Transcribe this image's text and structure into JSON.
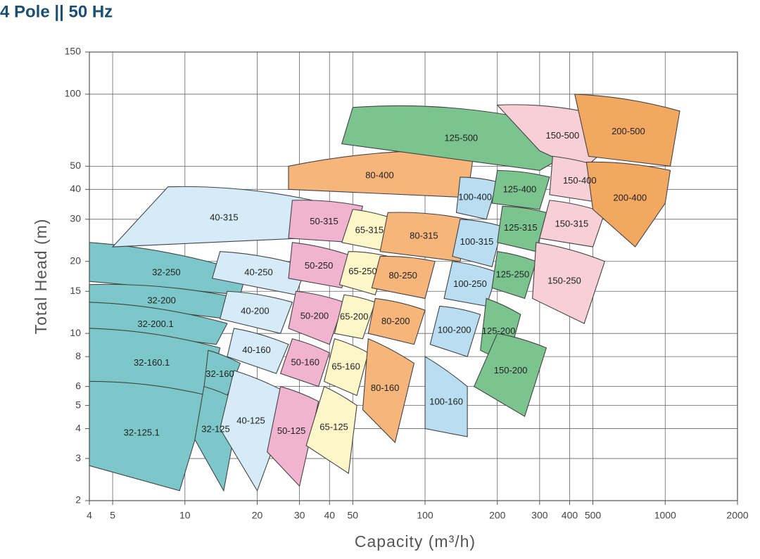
{
  "chart_data": {
    "type": "region",
    "title": "4 Pole || 50 Hz",
    "x_label": "Capacity (m³/h)",
    "y_label": "Total Head (m)",
    "log_x": true,
    "log_y": true,
    "grid": true,
    "xlim": [
      4,
      2000
    ],
    "ylim": [
      2,
      150
    ],
    "xticks": [
      4,
      5,
      10,
      20,
      30,
      40,
      50,
      100,
      200,
      300,
      400,
      500,
      1000,
      2000
    ],
    "yticks": [
      2,
      3,
      4,
      5,
      6,
      8,
      10,
      15,
      20,
      30,
      40,
      50,
      100,
      150
    ],
    "regions": [
      {
        "name": "32-250",
        "color": "#7cc7c9",
        "points": [
          [
            4,
            24
          ],
          [
            18,
            18
          ],
          [
            17,
            14.5
          ],
          [
            4,
            16.5
          ]
        ]
      },
      {
        "name": "32-200",
        "color": "#7cc7c9",
        "points": [
          [
            4,
            16
          ],
          [
            17,
            14
          ],
          [
            15,
            11.5
          ],
          [
            4,
            13.5
          ]
        ]
      },
      {
        "name": "32-200.1",
        "color": "#7cc7c9",
        "points": [
          [
            4,
            13.5
          ],
          [
            15,
            11
          ],
          [
            13.5,
            9
          ],
          [
            4,
            10.5
          ]
        ]
      },
      {
        "name": "32-160.1",
        "color": "#7cc7c9",
        "points": [
          [
            4,
            10.5
          ],
          [
            14,
            8.7
          ],
          [
            12.5,
            5.5
          ],
          [
            4,
            6.3
          ]
        ]
      },
      {
        "name": "32-125.1",
        "color": "#7cc7c9",
        "points": [
          [
            4,
            6.3
          ],
          [
            12.5,
            5.5
          ],
          [
            9.5,
            2.2
          ],
          [
            4,
            2.8
          ]
        ]
      },
      {
        "name": "32-160",
        "color": "#7cc7c9",
        "points": [
          [
            12.5,
            8.5
          ],
          [
            17,
            7.5
          ],
          [
            15,
            5.5
          ],
          [
            12,
            5.9
          ]
        ]
      },
      {
        "name": "32-125",
        "color": "#7cc7c9",
        "points": [
          [
            12,
            6
          ],
          [
            17,
            5.2
          ],
          [
            14.5,
            2.2
          ],
          [
            11,
            3.6
          ]
        ]
      },
      {
        "name": "40-315",
        "color": "#d5ebf7",
        "points": [
          [
            8.5,
            41
          ],
          [
            34,
            36
          ],
          [
            31,
            25
          ],
          [
            5,
            23
          ]
        ]
      },
      {
        "name": "40-250",
        "color": "#d5ebf7",
        "points": [
          [
            14,
            22
          ],
          [
            32,
            19
          ],
          [
            29,
            14.5
          ],
          [
            13,
            17
          ]
        ]
      },
      {
        "name": "40-200",
        "color": "#d5ebf7",
        "points": [
          [
            15,
            15
          ],
          [
            28,
            13.5
          ],
          [
            25,
            10
          ],
          [
            14,
            11.5
          ]
        ]
      },
      {
        "name": "40-160",
        "color": "#d5ebf7",
        "points": [
          [
            16,
            10.5
          ],
          [
            27,
            9
          ],
          [
            24,
            6.8
          ],
          [
            15,
            8
          ]
        ]
      },
      {
        "name": "40-125",
        "color": "#d5ebf7",
        "points": [
          [
            16,
            7
          ],
          [
            28,
            5.5
          ],
          [
            20,
            2.2
          ],
          [
            14,
            4
          ]
        ]
      },
      {
        "name": "50-315",
        "color": "#f0b3d0",
        "points": [
          [
            28,
            36
          ],
          [
            55,
            34
          ],
          [
            50,
            24
          ],
          [
            27,
            25
          ]
        ]
      },
      {
        "name": "50-250",
        "color": "#f0b3d0",
        "points": [
          [
            28,
            24
          ],
          [
            50,
            21
          ],
          [
            45,
            15.5
          ],
          [
            27,
            17
          ]
        ]
      },
      {
        "name": "50-200",
        "color": "#f0b3d0",
        "points": [
          [
            29,
            15
          ],
          [
            46,
            13.5
          ],
          [
            40,
            9
          ],
          [
            27,
            10.5
          ]
        ]
      },
      {
        "name": "50-160",
        "color": "#f0b3d0",
        "points": [
          [
            28,
            9.5
          ],
          [
            40,
            8.3
          ],
          [
            36,
            6
          ],
          [
            25,
            6.8
          ]
        ]
      },
      {
        "name": "50-125",
        "color": "#f0b3d0",
        "points": [
          [
            25,
            6
          ],
          [
            36,
            5.2
          ],
          [
            30,
            2.3
          ],
          [
            22,
            3.2
          ]
        ]
      },
      {
        "name": "80-400",
        "color": "#f5b57b",
        "points": [
          [
            27,
            50
          ],
          [
            160,
            58
          ],
          [
            150,
            37
          ],
          [
            27,
            40
          ]
        ]
      },
      {
        "name": "65-315",
        "color": "#fdf6c9",
        "points": [
          [
            50,
            33
          ],
          [
            75,
            30
          ],
          [
            70,
            22
          ],
          [
            45,
            24
          ]
        ]
      },
      {
        "name": "65-250",
        "color": "#fdf6c9",
        "points": [
          [
            48,
            22
          ],
          [
            70,
            21
          ],
          [
            62,
            14.5
          ],
          [
            44,
            16
          ]
        ]
      },
      {
        "name": "65-200",
        "color": "#fdf6c9",
        "points": [
          [
            46,
            14.5
          ],
          [
            62,
            13.5
          ],
          [
            55,
            9.5
          ],
          [
            42,
            10
          ]
        ]
      },
      {
        "name": "65-160",
        "color": "#fdf6c9",
        "points": [
          [
            42,
            9.5
          ],
          [
            58,
            8.3
          ],
          [
            52,
            5.5
          ],
          [
            38,
            6.3
          ]
        ]
      },
      {
        "name": "65-125",
        "color": "#fdf6c9",
        "points": [
          [
            38,
            6
          ],
          [
            52,
            5
          ],
          [
            48,
            2.6
          ],
          [
            32,
            3.4
          ]
        ]
      },
      {
        "name": "80-315",
        "color": "#f5b57b",
        "points": [
          [
            70,
            32
          ],
          [
            150,
            30
          ],
          [
            140,
            20
          ],
          [
            65,
            22
          ]
        ]
      },
      {
        "name": "80-250",
        "color": "#f5b57b",
        "points": [
          [
            65,
            21
          ],
          [
            110,
            20
          ],
          [
            100,
            14
          ],
          [
            60,
            15.5
          ]
        ]
      },
      {
        "name": "80-200",
        "color": "#f5b57b",
        "points": [
          [
            62,
            14
          ],
          [
            100,
            12.5
          ],
          [
            90,
            9
          ],
          [
            58,
            10
          ]
        ]
      },
      {
        "name": "80-160",
        "color": "#f5b57b",
        "points": [
          [
            58,
            9.5
          ],
          [
            90,
            7.5
          ],
          [
            75,
            3.5
          ],
          [
            55,
            4.8
          ]
        ]
      },
      {
        "name": "125-500",
        "color": "#7cc48f",
        "points": [
          [
            50,
            88
          ],
          [
            220,
            82
          ],
          [
            380,
            55
          ],
          [
            300,
            48
          ],
          [
            45,
            62
          ]
        ]
      },
      {
        "name": "100-400",
        "color": "#b9def2",
        "points": [
          [
            140,
            45
          ],
          [
            200,
            43
          ],
          [
            180,
            30
          ],
          [
            135,
            32
          ]
        ]
      },
      {
        "name": "100-315",
        "color": "#b9def2",
        "points": [
          [
            140,
            30
          ],
          [
            210,
            28
          ],
          [
            190,
            19
          ],
          [
            130,
            21
          ]
        ]
      },
      {
        "name": "100-250",
        "color": "#b9def2",
        "points": [
          [
            130,
            20
          ],
          [
            200,
            18
          ],
          [
            180,
            13
          ],
          [
            120,
            14
          ]
        ]
      },
      {
        "name": "100-200",
        "color": "#b9def2",
        "points": [
          [
            115,
            13
          ],
          [
            170,
            12
          ],
          [
            150,
            8
          ],
          [
            105,
            9
          ]
        ]
      },
      {
        "name": "100-160",
        "color": "#b9def2",
        "points": [
          [
            100,
            8
          ],
          [
            150,
            6
          ],
          [
            150,
            3.7
          ],
          [
            100,
            4
          ]
        ]
      },
      {
        "name": "125-400",
        "color": "#7cc48f",
        "points": [
          [
            200,
            48
          ],
          [
            330,
            45
          ],
          [
            300,
            33
          ],
          [
            190,
            35
          ]
        ]
      },
      {
        "name": "125-315",
        "color": "#7cc48f",
        "points": [
          [
            210,
            34
          ],
          [
            320,
            32
          ],
          [
            290,
            22
          ],
          [
            200,
            24
          ]
        ]
      },
      {
        "name": "125-250",
        "color": "#7cc48f",
        "points": [
          [
            200,
            22
          ],
          [
            290,
            20
          ],
          [
            260,
            14
          ],
          [
            190,
            15.5
          ]
        ]
      },
      {
        "name": "125-200",
        "color": "#7cc48f",
        "points": [
          [
            180,
            14
          ],
          [
            250,
            12
          ],
          [
            220,
            7.5
          ],
          [
            170,
            8.5
          ]
        ]
      },
      {
        "name": "150-200",
        "color": "#7cc48f",
        "points": [
          [
            200,
            10
          ],
          [
            320,
            8.7
          ],
          [
            260,
            4.5
          ],
          [
            160,
            6
          ]
        ]
      },
      {
        "name": "150-500",
        "color": "#f7cfd6",
        "points": [
          [
            200,
            90
          ],
          [
            450,
            85
          ],
          [
            600,
            62
          ],
          [
            450,
            48
          ],
          [
            300,
            58
          ]
        ]
      },
      {
        "name": "150-400",
        "color": "#f7cfd6",
        "points": [
          [
            340,
            55
          ],
          [
            600,
            48
          ],
          [
            560,
            35
          ],
          [
            330,
            38
          ]
        ]
      },
      {
        "name": "150-315",
        "color": "#f7cfd6",
        "points": [
          [
            330,
            36
          ],
          [
            560,
            32
          ],
          [
            500,
            23
          ],
          [
            300,
            25
          ]
        ]
      },
      {
        "name": "150-250",
        "color": "#f7cfd6",
        "points": [
          [
            290,
            24
          ],
          [
            560,
            20
          ],
          [
            460,
            11
          ],
          [
            280,
            14
          ]
        ]
      },
      {
        "name": "200-500",
        "color": "#f3a862",
        "points": [
          [
            420,
            100
          ],
          [
            1150,
            85
          ],
          [
            1050,
            50
          ],
          [
            480,
            55
          ]
        ]
      },
      {
        "name": "200-400",
        "color": "#f3a862",
        "points": [
          [
            470,
            52
          ],
          [
            1050,
            48
          ],
          [
            1000,
            35
          ],
          [
            750,
            23
          ],
          [
            500,
            33
          ]
        ]
      }
    ]
  }
}
